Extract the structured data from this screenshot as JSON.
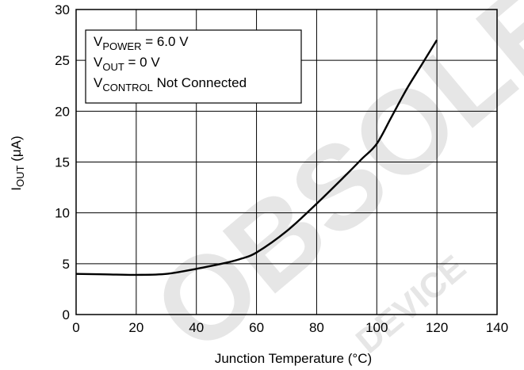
{
  "chart_data": {
    "type": "line",
    "xlabel": "Junction Temperature (°C)",
    "ylabel": {
      "main": "I",
      "sub": "OUT",
      "tail": " (μA)"
    },
    "xlim": [
      0,
      140
    ],
    "ylim": [
      0,
      30
    ],
    "xticks": [
      0,
      20,
      40,
      60,
      80,
      100,
      120,
      140
    ],
    "yticks": [
      0,
      5,
      10,
      15,
      20,
      25,
      30
    ],
    "grid": true,
    "legend_position": "top-left",
    "annotation_lines": [
      {
        "pre": "V",
        "sub": "POWER",
        "post": " = 6.0 V"
      },
      {
        "pre": "V",
        "sub": "OUT",
        "post": " = 0 V"
      },
      {
        "pre": "V",
        "sub": "CONTROL",
        "post": " Not Connected"
      }
    ],
    "series": [
      {
        "x": [
          0,
          10,
          20,
          30,
          40,
          50,
          55,
          60,
          70,
          80,
          90,
          95,
          100,
          105,
          110,
          115,
          120
        ],
        "y": [
          4.0,
          3.95,
          3.9,
          4.0,
          4.5,
          5.1,
          5.5,
          6.1,
          8.2,
          10.9,
          13.8,
          15.3,
          16.8,
          19.5,
          22.2,
          24.6,
          27.0
        ]
      }
    ]
  },
  "watermark": {
    "main": "OBSOLETE",
    "secondary": "DEVICE"
  }
}
